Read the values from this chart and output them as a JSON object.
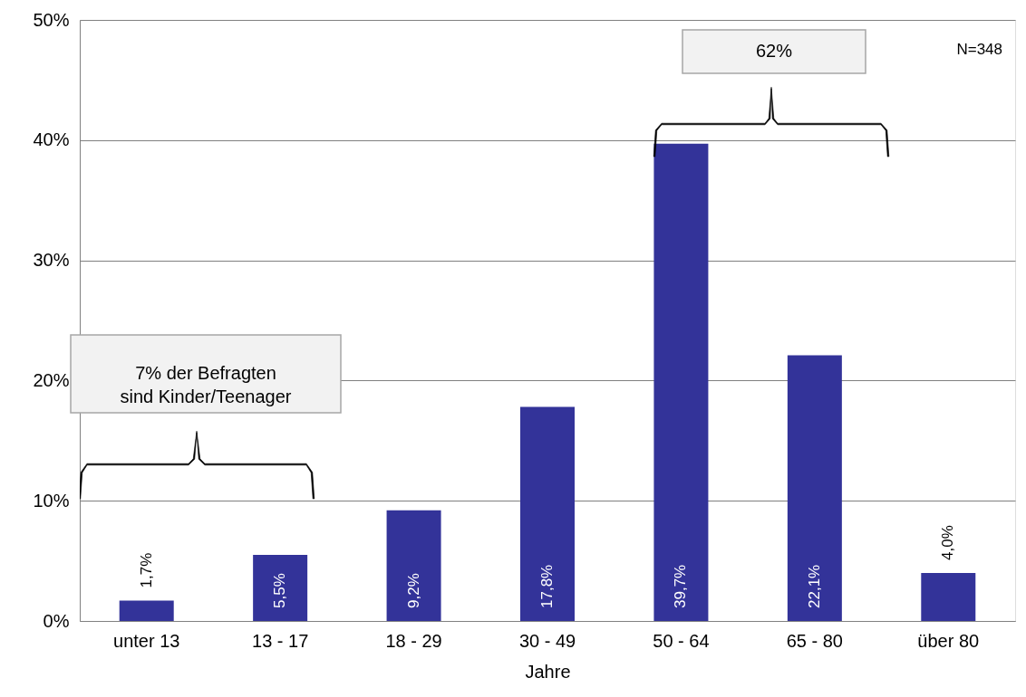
{
  "chart_data": {
    "type": "bar",
    "xlabel": "Jahre",
    "categories": [
      "unter 13",
      "13 - 17",
      "18 - 29",
      "30 - 49",
      "50 - 64",
      "65 - 80",
      "über 80"
    ],
    "values": [
      1.7,
      5.5,
      9.2,
      17.8,
      39.7,
      22.1,
      4.0
    ],
    "value_labels": [
      "1,7%",
      "5,5%",
      "9,2%",
      "17,8%",
      "39,7%",
      "22,1%",
      "4,0%"
    ],
    "color": "#333399",
    "ylim": [
      0,
      50
    ],
    "yticks": [
      {
        "value": 0,
        "label": "0%"
      },
      {
        "value": 10,
        "label": "10%"
      },
      {
        "value": 20,
        "label": "20%"
      },
      {
        "value": 30,
        "label": "30%"
      },
      {
        "value": 40,
        "label": "40%"
      },
      {
        "value": 50,
        "label": "50%"
      }
    ],
    "grid": "y",
    "annotations": [
      "7% der Befragten\nsind Kinder/Teenager",
      "62%",
      "N=348"
    ]
  }
}
